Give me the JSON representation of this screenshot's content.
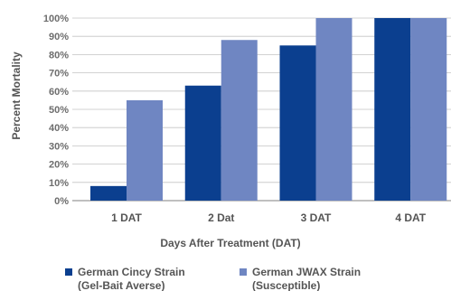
{
  "chart_data": {
    "type": "bar",
    "title": "",
    "xlabel": "Days After Treatment (DAT)",
    "ylabel": "Percent Mortality",
    "categories": [
      "1 DAT",
      "2 Dat",
      "3 DAT",
      "4 DAT"
    ],
    "series": [
      {
        "name": "German Cincy Strain",
        "subtitle": "(Gel-Bait Averse)",
        "color": "#0b3f8f",
        "values": [
          8,
          63,
          85,
          100
        ]
      },
      {
        "name": "German JWAX Strain",
        "subtitle": "(Susceptible)",
        "color": "#6f86c2",
        "values": [
          55,
          88,
          100,
          100
        ]
      }
    ],
    "ylim": [
      0,
      100
    ],
    "yticks": [
      "0%",
      "10%",
      "20%",
      "30%",
      "40%",
      "50%",
      "60%",
      "70%",
      "80%",
      "90%",
      "100%"
    ],
    "grid": true,
    "legend_position": "bottom"
  }
}
